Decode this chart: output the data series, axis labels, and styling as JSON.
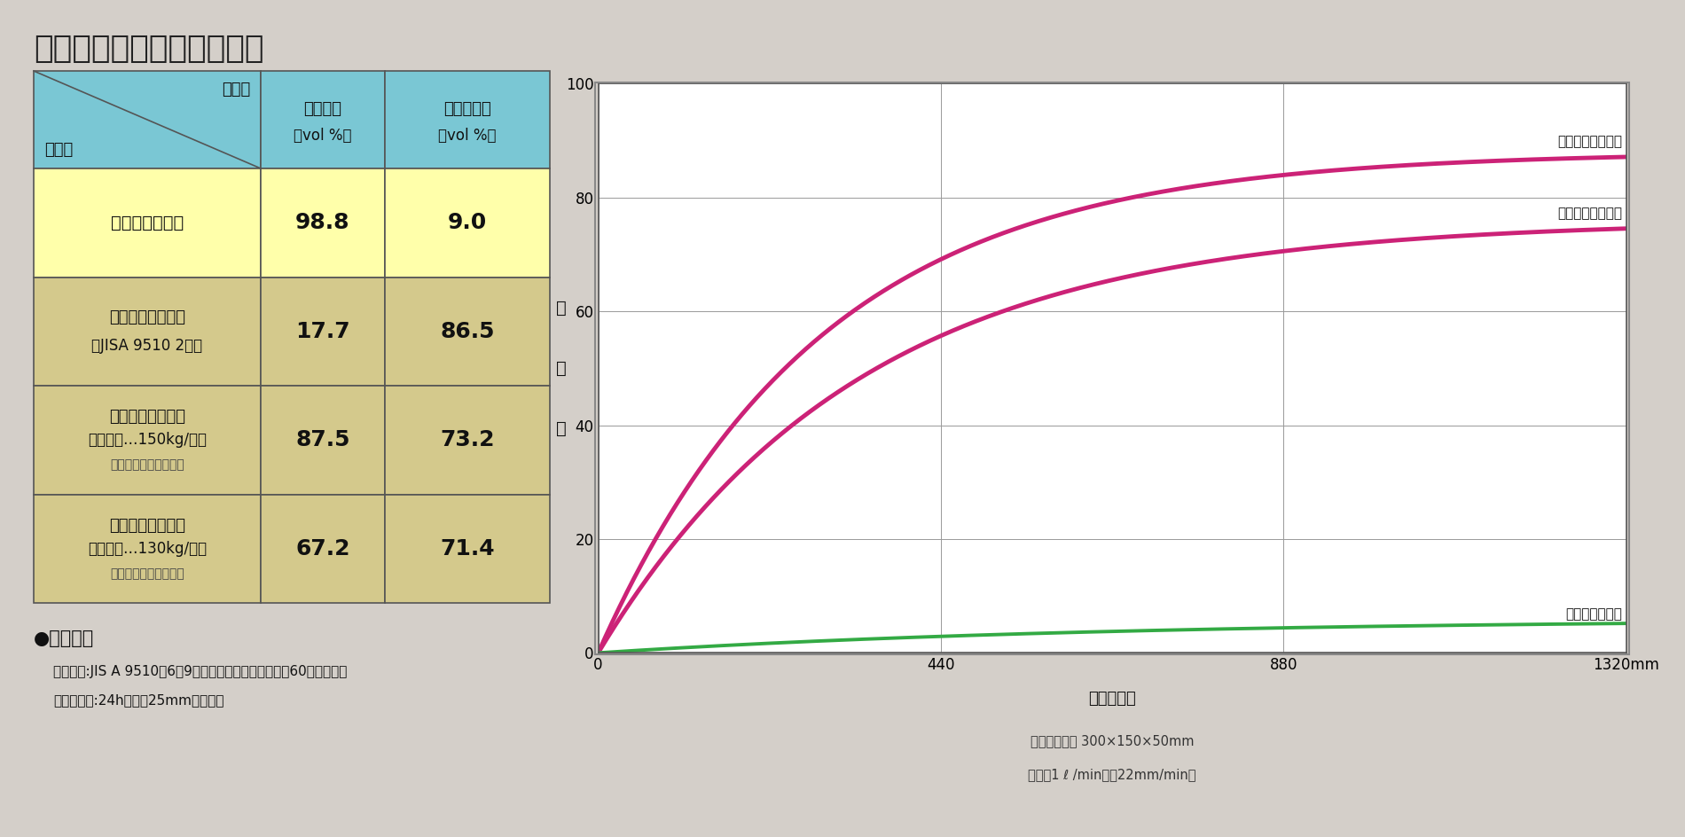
{
  "title": "はっ水性・吸水性比較試験",
  "bg_color": "#d4cfc9",
  "table_header_bg": "#7ac7d4",
  "table_row1_bg": "#ffffaa",
  "table_row_alt_bg": "#d4c98c",
  "chart_bg": "#ffffff",
  "rows": [
    {
      "product_lines": [
        "フジパーライト"
      ],
      "hassui": "98.8",
      "kyusui": "9.0",
      "highlight": true
    },
    {
      "product_lines": [
        "けい酸カルシウム",
        "（JISA 9510 2号）"
      ],
      "hassui": "17.7",
      "kyusui": "86.5",
      "highlight": false
    },
    {
      "product_lines": [
        "けい酸カルシウム",
        "（軽量品…150kg/㎡）",
        "注）表面はっ水処理品"
      ],
      "hassui": "87.5",
      "kyusui": "73.2",
      "highlight": false
    },
    {
      "product_lines": [
        "けい酸カルシウム",
        "（軽量品…130kg/㎡）",
        "注）表面はっ水処理品"
      ],
      "hassui": "67.2",
      "kyusui": "71.4",
      "highlight": false
    }
  ],
  "x_max": 1320,
  "x_ticks": [
    0,
    440,
    880,
    1320
  ],
  "y_max": 100,
  "y_ticks": [
    0,
    20,
    40,
    60,
    80,
    100
  ],
  "xlabel": "散　水　量",
  "xlabel_sub1": "サンプル寸法 300×150×50mm",
  "xlabel_sub2": "散水量1 ℓ /min（＝22mm/min）",
  "ylabel_chars": [
    "吸",
    "水",
    "量"
  ],
  "curve_color": "#cc2277",
  "fujipa_color": "#33aa44",
  "label_keisan": "けい酸カルシウム",
  "label_hyomen": "表面はっ水処理品",
  "label_fujipa": "フジパーライト",
  "footnote_title": "●試験方法",
  "footnote1": "はっ水度:JIS A 9510の6・9はっ水度試験方法に準拠（60分間散水）",
  "footnote2": "吸　水　率:24h水面下25mm水中浸漬"
}
